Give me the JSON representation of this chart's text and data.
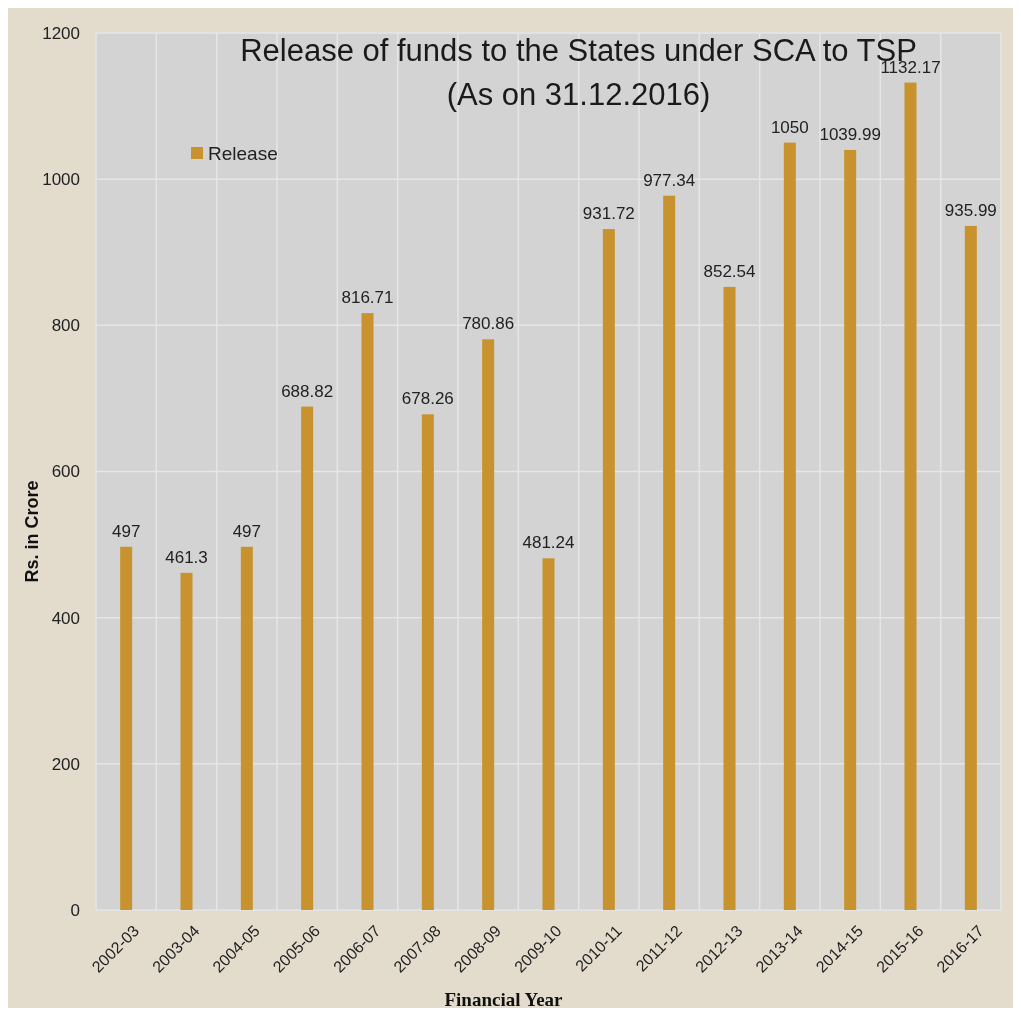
{
  "chart_data": {
    "type": "bar",
    "title": "Release of funds to the States under SCA to TSP",
    "subtitle": "(As on 31.12.2016)",
    "xlabel": "Financial Year",
    "ylabel": "Rs. in Crore",
    "categories": [
      "2002-03",
      "2003-04",
      "2004-05",
      "2005-06",
      "2006-07",
      "2007-08",
      "2008-09",
      "2009-10",
      "2010-11",
      "2011-12",
      "2012-13",
      "2013-14",
      "2014-15",
      "2015-16",
      "2016-17"
    ],
    "series": [
      {
        "name": "Release",
        "color": "#c8922e",
        "values": [
          497,
          461.3,
          497,
          688.82,
          816.71,
          678.26,
          780.86,
          481.24,
          931.72,
          977.34,
          852.54,
          1050,
          1039.99,
          1132.17,
          935.99
        ]
      }
    ],
    "ylim": [
      0,
      1200
    ],
    "yticks": [
      0,
      200,
      400,
      600,
      800,
      1000,
      1200
    ],
    "grid": true,
    "legend": "top left",
    "data_labels": true
  }
}
